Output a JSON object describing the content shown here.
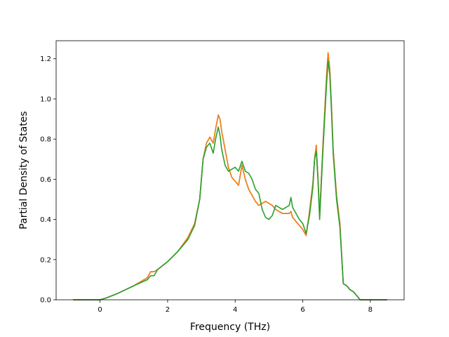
{
  "chart_data": {
    "type": "line",
    "xlabel": "Frequency (THz)",
    "ylabel": "Partial Density of States",
    "xlim": [
      -1.3,
      9.0
    ],
    "ylim": [
      0.0,
      1.29
    ],
    "x_ticks": [
      0,
      2,
      4,
      6,
      8
    ],
    "y_ticks": [
      0.0,
      0.2,
      0.4,
      0.6,
      0.8,
      1.0,
      1.2
    ],
    "x_tick_labels": [
      "0",
      "2",
      "4",
      "6",
      "8"
    ],
    "y_tick_labels": [
      "0.0",
      "0.2",
      "0.4",
      "0.6",
      "0.8",
      "1.0",
      "1.2"
    ],
    "grid": false,
    "series": [
      {
        "color": "#1f77b4",
        "x": [
          -0.8,
          0.0,
          0.2,
          0.5,
          1.0,
          1.4,
          1.5,
          1.6,
          1.7,
          2.0,
          2.3,
          2.6,
          2.8,
          2.95,
          3.05,
          3.15,
          3.25,
          3.35,
          3.42,
          3.5,
          3.55,
          3.6,
          3.7,
          3.8,
          3.9,
          4.0,
          4.1,
          4.2,
          4.3,
          4.4,
          4.5,
          4.6,
          4.7,
          4.8,
          4.9,
          5.0,
          5.1,
          5.2,
          5.3,
          5.4,
          5.5,
          5.6,
          5.65,
          5.7,
          5.8,
          5.9,
          6.0,
          6.1,
          6.2,
          6.3,
          6.35,
          6.4,
          6.45,
          6.5,
          6.6,
          6.7,
          6.75,
          6.8,
          6.85,
          6.9,
          7.0,
          7.1,
          7.2,
          7.3,
          7.4,
          7.5,
          7.6,
          7.7,
          7.8,
          8.0,
          8.5
        ],
        "y": [
          0.0,
          0.0,
          0.01,
          0.03,
          0.07,
          0.11,
          0.14,
          0.14,
          0.15,
          0.19,
          0.24,
          0.31,
          0.38,
          0.5,
          0.7,
          0.78,
          0.81,
          0.78,
          0.85,
          0.92,
          0.9,
          0.84,
          0.75,
          0.66,
          0.61,
          0.59,
          0.57,
          0.67,
          0.6,
          0.55,
          0.52,
          0.49,
          0.47,
          0.48,
          0.49,
          0.48,
          0.47,
          0.45,
          0.44,
          0.43,
          0.43,
          0.43,
          0.44,
          0.41,
          0.39,
          0.37,
          0.35,
          0.32,
          0.44,
          0.58,
          0.7,
          0.77,
          0.61,
          0.42,
          0.78,
          1.1,
          1.23,
          1.15,
          0.97,
          0.75,
          0.52,
          0.38,
          0.08,
          0.07,
          0.05,
          0.04,
          0.02,
          0.0,
          0.0,
          0.0,
          0.0
        ]
      },
      {
        "color": "#ff7f0e",
        "x": [
          -0.8,
          0.0,
          0.2,
          0.5,
          1.0,
          1.4,
          1.5,
          1.6,
          1.7,
          2.0,
          2.3,
          2.6,
          2.8,
          2.95,
          3.05,
          3.15,
          3.25,
          3.35,
          3.42,
          3.5,
          3.55,
          3.6,
          3.7,
          3.8,
          3.9,
          4.0,
          4.1,
          4.2,
          4.3,
          4.4,
          4.5,
          4.6,
          4.7,
          4.8,
          4.9,
          5.0,
          5.1,
          5.2,
          5.3,
          5.4,
          5.5,
          5.6,
          5.65,
          5.7,
          5.8,
          5.9,
          6.0,
          6.1,
          6.2,
          6.3,
          6.35,
          6.4,
          6.45,
          6.5,
          6.6,
          6.7,
          6.75,
          6.8,
          6.85,
          6.9,
          7.0,
          7.1,
          7.2,
          7.3,
          7.4,
          7.5,
          7.6,
          7.7,
          7.8,
          8.0,
          8.5
        ],
        "y": [
          0.0,
          0.0,
          0.01,
          0.03,
          0.07,
          0.11,
          0.14,
          0.14,
          0.15,
          0.19,
          0.24,
          0.31,
          0.38,
          0.5,
          0.7,
          0.78,
          0.81,
          0.78,
          0.85,
          0.92,
          0.9,
          0.84,
          0.75,
          0.66,
          0.61,
          0.59,
          0.57,
          0.67,
          0.6,
          0.55,
          0.52,
          0.49,
          0.47,
          0.48,
          0.49,
          0.48,
          0.47,
          0.45,
          0.44,
          0.43,
          0.43,
          0.43,
          0.44,
          0.41,
          0.39,
          0.37,
          0.35,
          0.32,
          0.44,
          0.58,
          0.7,
          0.77,
          0.61,
          0.42,
          0.78,
          1.1,
          1.23,
          1.15,
          0.97,
          0.75,
          0.52,
          0.38,
          0.08,
          0.07,
          0.05,
          0.04,
          0.02,
          0.0,
          0.0,
          0.0,
          0.0
        ]
      },
      {
        "color": "#2ca02c",
        "x": [
          -0.8,
          0.0,
          0.2,
          0.5,
          1.0,
          1.4,
          1.5,
          1.6,
          1.7,
          2.0,
          2.3,
          2.6,
          2.8,
          2.95,
          3.05,
          3.15,
          3.25,
          3.35,
          3.42,
          3.5,
          3.55,
          3.6,
          3.7,
          3.8,
          3.9,
          4.0,
          4.1,
          4.2,
          4.3,
          4.4,
          4.5,
          4.6,
          4.7,
          4.8,
          4.9,
          5.0,
          5.1,
          5.2,
          5.3,
          5.4,
          5.5,
          5.6,
          5.65,
          5.7,
          5.8,
          5.9,
          6.0,
          6.1,
          6.2,
          6.3,
          6.35,
          6.4,
          6.45,
          6.5,
          6.6,
          6.7,
          6.75,
          6.8,
          6.85,
          6.9,
          7.0,
          7.1,
          7.2,
          7.3,
          7.4,
          7.5,
          7.6,
          7.7,
          7.8,
          8.0,
          8.5
        ],
        "y": [
          0.0,
          0.0,
          0.01,
          0.03,
          0.07,
          0.1,
          0.12,
          0.12,
          0.15,
          0.19,
          0.24,
          0.3,
          0.37,
          0.5,
          0.7,
          0.76,
          0.78,
          0.73,
          0.8,
          0.86,
          0.82,
          0.75,
          0.67,
          0.64,
          0.65,
          0.66,
          0.64,
          0.69,
          0.64,
          0.63,
          0.6,
          0.55,
          0.53,
          0.45,
          0.41,
          0.4,
          0.42,
          0.47,
          0.46,
          0.45,
          0.46,
          0.47,
          0.51,
          0.46,
          0.43,
          0.4,
          0.38,
          0.33,
          0.42,
          0.56,
          0.7,
          0.74,
          0.6,
          0.4,
          0.75,
          1.06,
          1.19,
          1.12,
          0.94,
          0.73,
          0.5,
          0.36,
          0.08,
          0.07,
          0.05,
          0.04,
          0.02,
          0.0,
          0.0,
          0.0,
          0.0
        ]
      }
    ]
  }
}
